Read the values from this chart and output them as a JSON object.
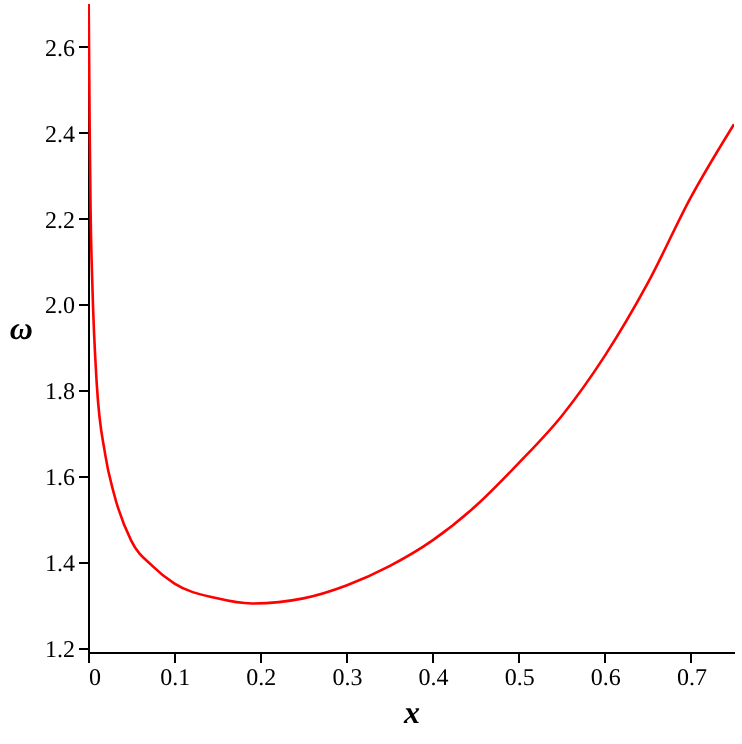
{
  "chart_data": {
    "type": "line",
    "xlabel": "x",
    "ylabel": "ω",
    "x": [
      0.0008,
      0.002,
      0.003,
      0.005,
      0.01,
      0.02,
      0.03,
      0.05,
      0.075,
      0.1,
      0.15,
      0.19,
      0.25,
      0.3,
      0.35,
      0.4,
      0.45,
      0.5,
      0.55,
      0.6,
      0.65,
      0.7,
      0.75
    ],
    "series": [
      {
        "color": "#ff0000",
        "values": [
          2.7,
          2.4,
          2.22,
          2.05,
          1.82,
          1.65,
          1.56,
          1.45,
          1.39,
          1.35,
          1.315,
          1.303,
          1.315,
          1.345,
          1.39,
          1.45,
          1.53,
          1.63,
          1.74,
          1.88,
          2.05,
          2.25,
          2.42
        ]
      }
    ],
    "xlim": [
      0,
      0.75
    ],
    "ylim": [
      1.19,
      2.7
    ],
    "xticks": [
      {
        "value": 0,
        "label": "0"
      },
      0.1,
      0.2,
      0.3,
      0.4,
      0.5,
      0.6,
      0.7
    ],
    "yticks": [
      1.2,
      1.4,
      1.6,
      1.8,
      {
        "value": 2.0,
        "label": "2.0"
      },
      2.2,
      2.4,
      2.6
    ],
    "grid": false,
    "marker": "none",
    "line_style": "solid"
  }
}
